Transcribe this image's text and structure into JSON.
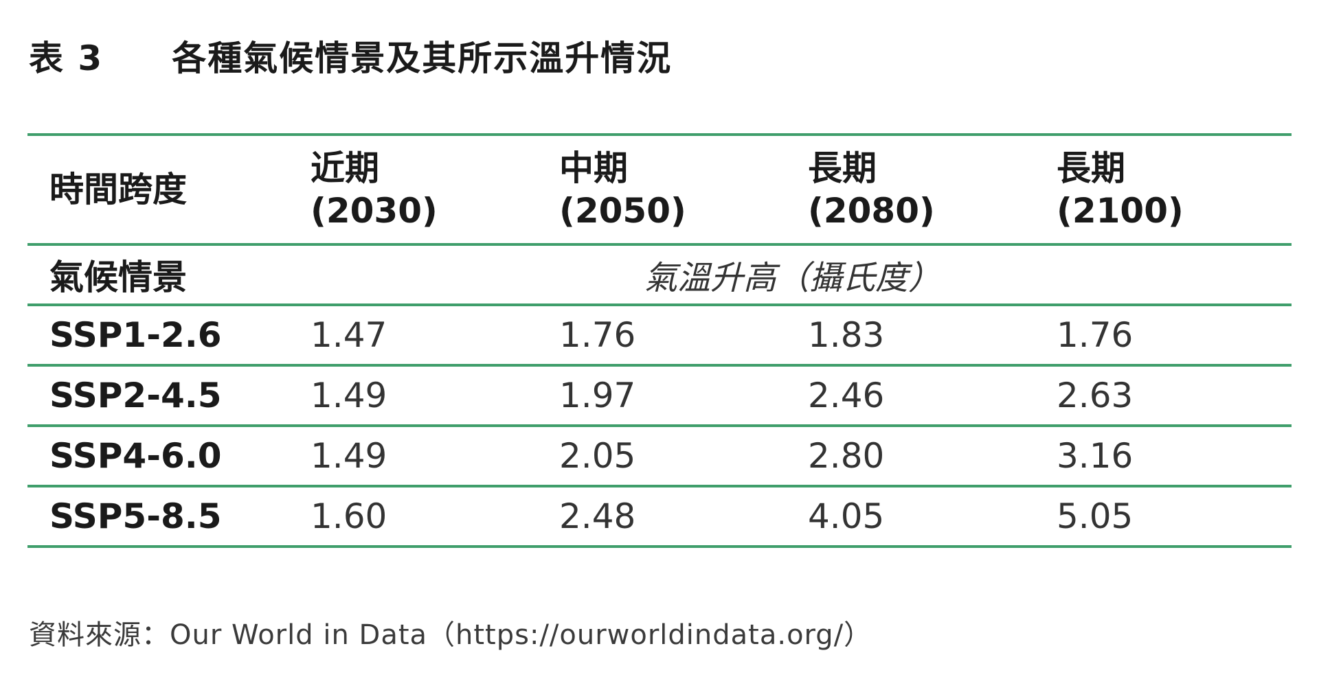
{
  "title": {
    "label": "表 3",
    "text": "各種氣候情景及其所示溫升情況"
  },
  "table": {
    "header_row_label": "時間跨度",
    "periods": [
      {
        "name": "近期",
        "year": "(2030)"
      },
      {
        "name": "中期",
        "year": "(2050)"
      },
      {
        "name": "長期",
        "year": "(2080)"
      },
      {
        "name": "長期",
        "year": "(2100)"
      }
    ],
    "unit_row_label": "氣候情景",
    "unit_text": "氣溫升高（攝氏度）",
    "rows": [
      {
        "scenario": "SSP1-2.6",
        "values": [
          "1.47",
          "1.76",
          "1.83",
          "1.76"
        ]
      },
      {
        "scenario": "SSP2-4.5",
        "values": [
          "1.49",
          "1.97",
          "2.46",
          "2.63"
        ]
      },
      {
        "scenario": "SSP4-6.0",
        "values": [
          "1.49",
          "2.05",
          "2.80",
          "3.16"
        ]
      },
      {
        "scenario": "SSP5-8.5",
        "values": [
          "1.60",
          "2.48",
          "4.05",
          "5.05"
        ]
      }
    ]
  },
  "source": "資料來源：Our World in Data（https://ourworldindata.org/）",
  "colors": {
    "rule": "#3f9e6b",
    "text": "#1a1a1a"
  }
}
